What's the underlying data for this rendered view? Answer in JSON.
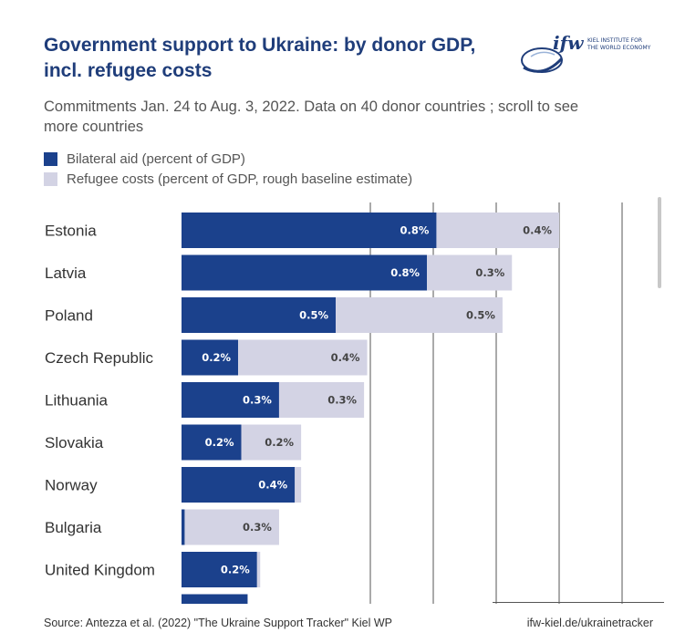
{
  "header": {
    "title_line1": "Government support to Ukraine: by donor GDP,",
    "title_line2": "incl. refugee costs",
    "subtitle_line1": "Commitments Jan. 24 to Aug. 3, 2022. Data on 40 donor countries ; scroll to see",
    "subtitle_line2": "more countries"
  },
  "logo": {
    "mark": "ifw",
    "line1": "KIEL INSTITUTE FOR",
    "line2": "THE WORLD ECONOMY"
  },
  "colors": {
    "bilateral": "#1b418c",
    "refugee": "#d3d3e4",
    "title": "#1f3d7a",
    "grid": "#555555"
  },
  "chart_data": {
    "type": "bar",
    "orientation": "horizontal",
    "stacked": true,
    "title": "Government support to Ukraine: by donor GDP, incl. refugee costs",
    "categories": [
      "Estonia",
      "Latvia",
      "Poland",
      "Czech Republic",
      "Lithuania",
      "Slovakia",
      "Norway",
      "Bulgaria",
      "United Kingdom"
    ],
    "series": [
      {
        "name": "Bilateral aid (percent of GDP)",
        "values": [
          0.81,
          0.78,
          0.49,
          0.18,
          0.31,
          0.19,
          0.36,
          0.01,
          0.24
        ],
        "labels": [
          "0.8%",
          "0.8%",
          "0.5%",
          "0.2%",
          "0.3%",
          "0.2%",
          "0.4%",
          "",
          "0.2%"
        ]
      },
      {
        "name": "Refugee costs (percent of GDP, rough baseline estimate)",
        "values": [
          0.39,
          0.27,
          0.53,
          0.41,
          0.27,
          0.19,
          0.02,
          0.3,
          0.01
        ],
        "labels": [
          "0.4%",
          "0.3%",
          "0.5%",
          "0.4%",
          "0.3%",
          "0.2%",
          "",
          "0.3%",
          ""
        ]
      }
    ],
    "partial_next_bar": {
      "bilateral": 0.21
    },
    "xlim": [
      0,
      1.5
    ],
    "gridlines": [
      0.6,
      0.8,
      1.0,
      1.2,
      1.4
    ],
    "legend_position": "top-left"
  },
  "footer": {
    "source": "Source: Antezza et al. (2022) \"The Ukraine Support Tracker\" Kiel WP",
    "url": "ifw-kiel.de/ukrainetracker"
  }
}
